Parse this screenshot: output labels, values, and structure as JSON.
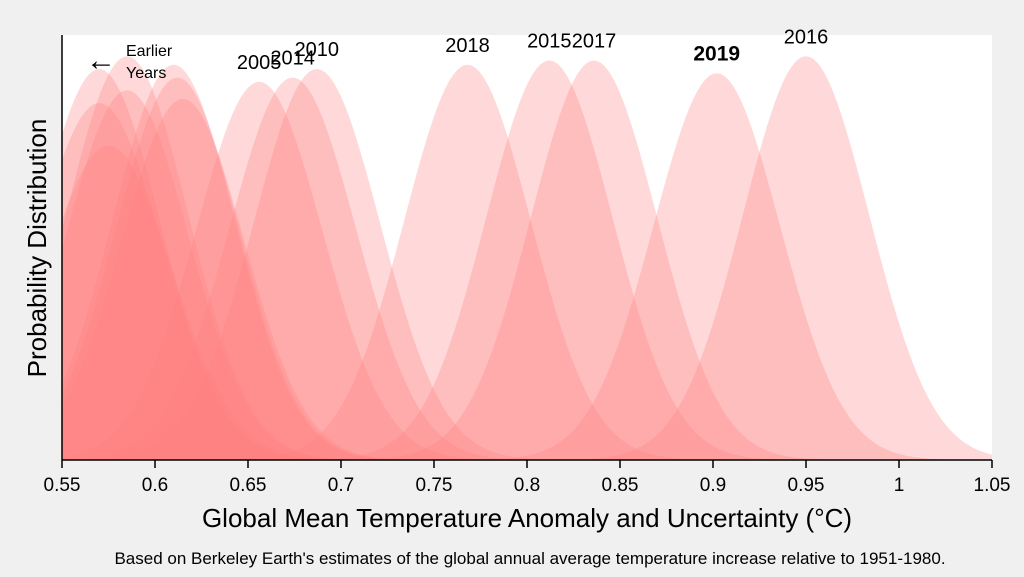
{
  "chart_data": {
    "type": "area",
    "subtype": "overlapping gaussian probability distributions",
    "title": "",
    "xlabel": "Global Mean Temperature Anomaly and Uncertainty (°C)",
    "ylabel": "Probability Distribution",
    "xlim": [
      0.55,
      1.05
    ],
    "xticks": [
      0.55,
      0.6,
      0.65,
      0.7,
      0.75,
      0.8,
      0.85,
      0.9,
      0.95,
      1,
      1.05
    ],
    "xtick_labels": [
      "0.55",
      "0.6",
      "0.65",
      "0.7",
      "0.75",
      "0.8",
      "0.85",
      "0.9",
      "0.95",
      "1",
      "1.05"
    ],
    "caption": "Based on Berkeley Earth's estimates of the global annual average temperature increase relative to 1951-1980.",
    "note": {
      "arrow": "←",
      "line1": "Earlier",
      "line2": "Years"
    },
    "fill_color": "#ff8080",
    "fill_opacity": 0.3,
    "series": [
      {
        "name": "",
        "mean": 0.57,
        "peak": 0.84,
        "sd": 0.034
      },
      {
        "name": "",
        "mean": 0.57,
        "peak": 0.92,
        "sd": 0.033
      },
      {
        "name": "",
        "mean": 0.575,
        "peak": 0.74,
        "sd": 0.034
      },
      {
        "name": "",
        "mean": 0.585,
        "peak": 0.87,
        "sd": 0.033
      },
      {
        "name": "",
        "mean": 0.585,
        "peak": 0.95,
        "sd": 0.033
      },
      {
        "name": "",
        "mean": 0.61,
        "peak": 0.93,
        "sd": 0.033
      },
      {
        "name": "",
        "mean": 0.612,
        "peak": 0.9,
        "sd": 0.033
      },
      {
        "name": "",
        "mean": 0.615,
        "peak": 0.85,
        "sd": 0.033
      },
      {
        "name": "2005",
        "mean": 0.656,
        "peak": 0.89,
        "sd": 0.034
      },
      {
        "name": "2014",
        "mean": 0.674,
        "peak": 0.9,
        "sd": 0.034
      },
      {
        "name": "2010",
        "mean": 0.687,
        "peak": 0.92,
        "sd": 0.034
      },
      {
        "name": "2018",
        "mean": 0.768,
        "peak": 0.93,
        "sd": 0.034
      },
      {
        "name": "2015",
        "mean": 0.812,
        "peak": 0.94,
        "sd": 0.034
      },
      {
        "name": "2017",
        "mean": 0.836,
        "peak": 0.94,
        "sd": 0.034
      },
      {
        "name": "2019",
        "mean": 0.902,
        "peak": 0.91,
        "sd": 0.034,
        "bold": true
      },
      {
        "name": "2016",
        "mean": 0.95,
        "peak": 0.95,
        "sd": 0.034
      }
    ]
  }
}
